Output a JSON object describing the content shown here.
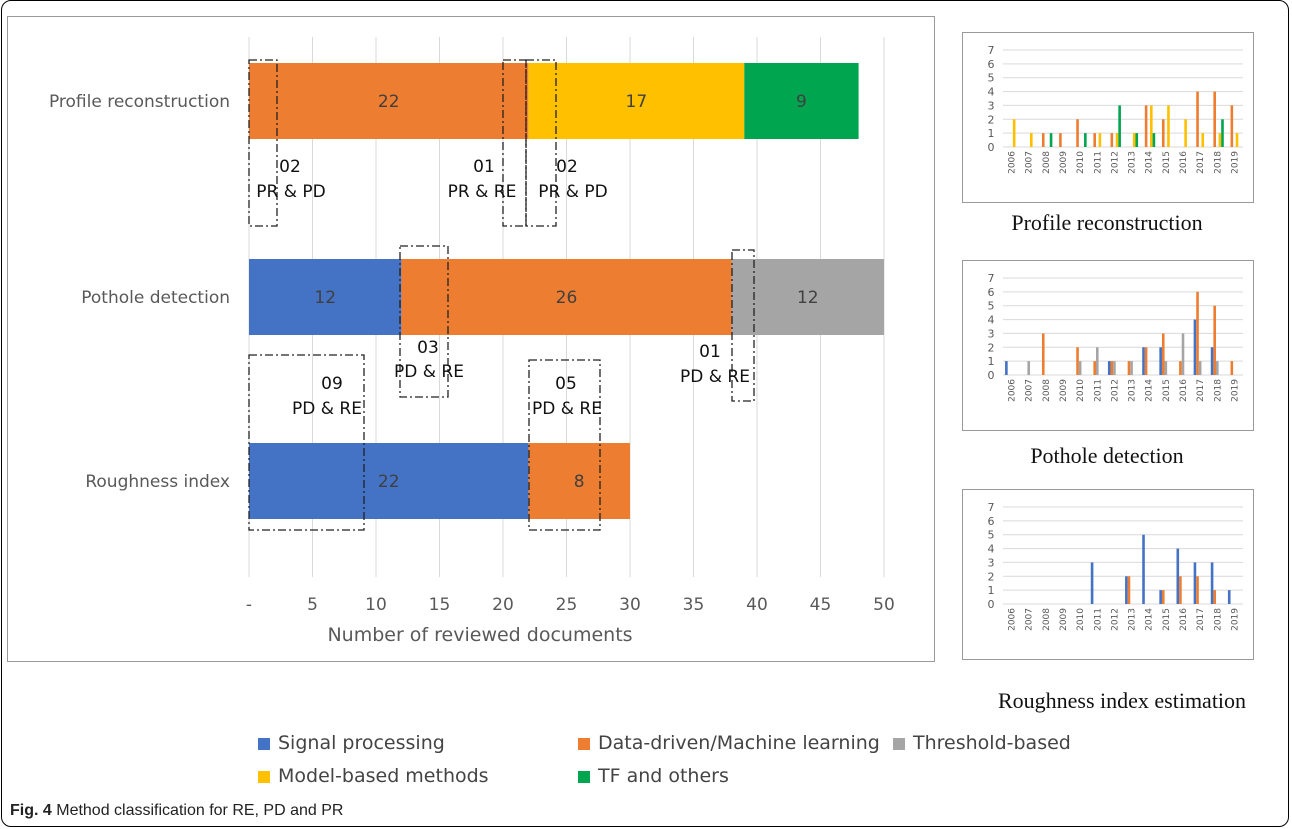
{
  "caption": {
    "label": "Fig. 4",
    "text": "Method classification for RE, PD and PR"
  },
  "colors": {
    "signal": "#4472C4",
    "data": "#ED7D31",
    "threshold": "#A5A5A5",
    "model": "#FFC000",
    "tf": "#00A550"
  },
  "legend": [
    {
      "name": "Signal processing",
      "color": "#4472C4"
    },
    {
      "name": "Data-driven/Machine learning",
      "color": "#ED7D31"
    },
    {
      "name": "Threshold-based",
      "color": "#A5A5A5"
    },
    {
      "name": "Model-based methods",
      "color": "#FFC000"
    },
    {
      "name": "TF and others",
      "color": "#00A550"
    }
  ],
  "chart_data": [
    {
      "type": "bar",
      "orientation": "horizontal",
      "stacked": true,
      "xlabel": "Number of reviewed documents",
      "xlim": [
        0,
        50
      ],
      "xticks": [
        "-",
        "5",
        "10",
        "15",
        "20",
        "25",
        "30",
        "35",
        "40",
        "45",
        "50"
      ],
      "categories": [
        "Profile reconstruction",
        "Pothole detection",
        "Roughness index"
      ],
      "series": [
        {
          "name": "Signal processing",
          "values": [
            0,
            12,
            22
          ]
        },
        {
          "name": "Data-driven/Machine learning",
          "values": [
            22,
            26,
            8
          ]
        },
        {
          "name": "Threshold-based",
          "values": [
            0,
            12,
            0
          ]
        },
        {
          "name": "Model-based methods",
          "values": [
            17,
            0,
            0
          ]
        },
        {
          "name": "TF and others",
          "values": [
            9,
            0,
            0
          ]
        }
      ],
      "annotations": [
        {
          "count": "02",
          "text": "PR & PD"
        },
        {
          "count": "01",
          "text": "PR & RE"
        },
        {
          "count": "02",
          "text": "PR & PD"
        },
        {
          "count": "03",
          "text": "PD & RE"
        },
        {
          "count": "01",
          "text": "PD & RE"
        },
        {
          "count": "09",
          "text": "PD & RE"
        },
        {
          "count": "05",
          "text": "PD & RE"
        }
      ]
    },
    {
      "type": "bar",
      "title": "Profile reconstruction",
      "ylim": [
        0,
        7
      ],
      "categories": [
        "2006",
        "2007",
        "2008",
        "2009",
        "2010",
        "2011",
        "2012",
        "2013",
        "2014",
        "2015",
        "2016",
        "2017",
        "2018",
        "2019"
      ],
      "series": [
        {
          "name": "Signal processing",
          "values": [
            0,
            0,
            0,
            0,
            0,
            0,
            0,
            0,
            0,
            0,
            0,
            0,
            0,
            0
          ]
        },
        {
          "name": "Data-driven/Machine learning",
          "values": [
            0,
            0,
            1,
            1,
            2,
            1,
            1,
            0,
            3,
            2,
            0,
            4,
            4,
            3
          ]
        },
        {
          "name": "Threshold-based",
          "values": [
            0,
            0,
            0,
            0,
            0,
            0,
            0,
            0,
            0,
            0,
            0,
            0,
            0,
            0
          ]
        },
        {
          "name": "Model-based methods",
          "values": [
            2,
            1,
            0,
            0,
            0,
            1,
            1,
            1,
            3,
            3,
            2,
            1,
            1,
            1
          ]
        },
        {
          "name": "TF and others",
          "values": [
            0,
            0,
            1,
            0,
            1,
            0,
            3,
            1,
            1,
            0,
            0,
            0,
            2,
            0
          ]
        }
      ]
    },
    {
      "type": "bar",
      "title": "Pothole detection",
      "ylim": [
        0,
        7
      ],
      "categories": [
        "2006",
        "2007",
        "2008",
        "2009",
        "2010",
        "2011",
        "2012",
        "2013",
        "2014",
        "2015",
        "2016",
        "2017",
        "2018",
        "2019"
      ],
      "series": [
        {
          "name": "Signal processing",
          "values": [
            1,
            0,
            0,
            0,
            0,
            0,
            1,
            0,
            2,
            2,
            0,
            4,
            2,
            0
          ]
        },
        {
          "name": "Data-driven/Machine learning",
          "values": [
            0,
            0,
            3,
            0,
            2,
            1,
            1,
            1,
            2,
            3,
            1,
            6,
            5,
            1
          ]
        },
        {
          "name": "Threshold-based",
          "values": [
            0,
            1,
            0,
            0,
            1,
            2,
            1,
            1,
            0,
            1,
            3,
            1,
            1,
            0
          ]
        },
        {
          "name": "Model-based methods",
          "values": [
            0,
            0,
            0,
            0,
            0,
            0,
            0,
            0,
            0,
            0,
            0,
            0,
            0,
            0
          ]
        },
        {
          "name": "TF and others",
          "values": [
            0,
            0,
            0,
            0,
            0,
            0,
            0,
            0,
            0,
            0,
            0,
            0,
            0,
            0
          ]
        }
      ]
    },
    {
      "type": "bar",
      "title": "Roughness index estimation",
      "ylim": [
        0,
        7
      ],
      "categories": [
        "2006",
        "2007",
        "2008",
        "2009",
        "2010",
        "2011",
        "2012",
        "2013",
        "2014",
        "2015",
        "2016",
        "2017",
        "2018",
        "2019"
      ],
      "series": [
        {
          "name": "Signal processing",
          "values": [
            0,
            0,
            0,
            0,
            0,
            3,
            0,
            2,
            5,
            1,
            4,
            3,
            3,
            1
          ]
        },
        {
          "name": "Data-driven/Machine learning",
          "values": [
            0,
            0,
            0,
            0,
            0,
            0,
            0,
            2,
            0,
            1,
            2,
            2,
            1,
            0
          ]
        },
        {
          "name": "Threshold-based",
          "values": [
            0,
            0,
            0,
            0,
            0,
            0,
            0,
            0,
            0,
            0,
            0,
            0,
            0,
            0
          ]
        },
        {
          "name": "Model-based methods",
          "values": [
            0,
            0,
            0,
            0,
            0,
            0,
            0,
            0,
            0,
            0,
            0,
            0,
            0,
            0
          ]
        },
        {
          "name": "TF and others",
          "values": [
            0,
            0,
            0,
            0,
            0,
            0,
            0,
            0,
            0,
            0,
            0,
            0,
            0,
            0
          ]
        }
      ]
    }
  ]
}
